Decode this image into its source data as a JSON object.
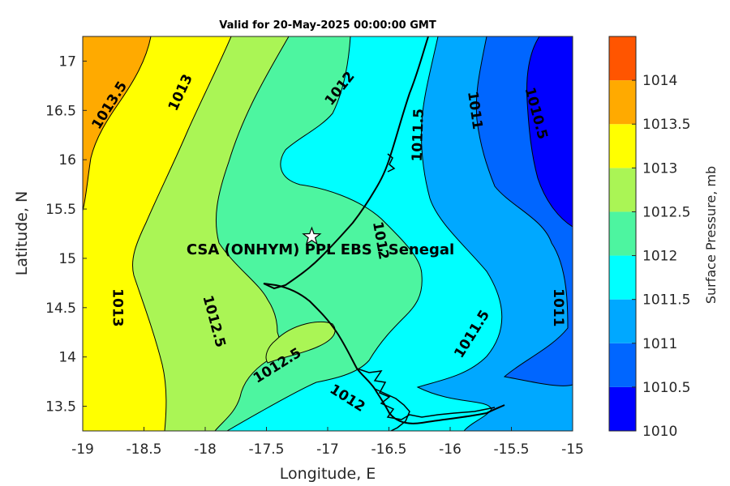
{
  "title": "Valid for 20-May-2025 00:00:00 GMT",
  "map": {
    "xlabel": "Longitude, E",
    "ylabel": "Latitude, N",
    "xlim": [
      -19,
      -15
    ],
    "ylim": [
      13.25,
      17.25
    ],
    "x_ticks": [
      "-19",
      "-18.5",
      "-18",
      "-17.5",
      "-17",
      "-16.5",
      "-16",
      "-15.5",
      "-15"
    ],
    "y_ticks": [
      "13.5",
      "14",
      "14.5",
      "15",
      "15.5",
      "16",
      "16.5",
      "17"
    ],
    "station": {
      "name": "CSA (ONHYM) PPL EBS - Senegal",
      "lon": -17.13,
      "lat": 15.22
    },
    "contour_labels": [
      {
        "text": "1013.5",
        "lon": -18.78,
        "lat": 16.55,
        "angle": -58
      },
      {
        "text": "1013",
        "lon": -18.2,
        "lat": 16.68,
        "angle": -65
      },
      {
        "text": "1012",
        "lon": -16.9,
        "lat": 16.72,
        "angle": -52
      },
      {
        "text": "1011.5",
        "lon": -16.26,
        "lat": 16.25,
        "angle": -88
      },
      {
        "text": "1011",
        "lon": -15.8,
        "lat": 16.5,
        "angle": 82
      },
      {
        "text": "1010.5",
        "lon": -15.3,
        "lat": 16.47,
        "angle": 75
      },
      {
        "text": "1012",
        "lon": -16.57,
        "lat": 15.18,
        "angle": 80
      },
      {
        "text": "1013",
        "lon": -18.72,
        "lat": 14.5,
        "angle": 90
      },
      {
        "text": "1012.5",
        "lon": -17.93,
        "lat": 14.36,
        "angle": 75
      },
      {
        "text": "1012.5",
        "lon": -17.41,
        "lat": 13.91,
        "angle": -32
      },
      {
        "text": "1012",
        "lon": -16.84,
        "lat": 13.58,
        "angle": 32
      },
      {
        "text": "1011.5",
        "lon": -15.82,
        "lat": 14.23,
        "angle": -58
      },
      {
        "text": "1011",
        "lon": -15.12,
        "lat": 14.5,
        "angle": 90
      }
    ]
  },
  "colorbar": {
    "label": "Surface Pressure, mb",
    "levels": [
      "1010",
      "1010.5",
      "1011",
      "1011.5",
      "1012",
      "1012.5",
      "1013",
      "1013.5",
      "1014"
    ],
    "colors": [
      "#0000ff",
      "#0066ff",
      "#00a8ff",
      "#00ffff",
      "#4df5a0",
      "#aaf555",
      "#ffff00",
      "#ffaa00",
      "#ff5500"
    ]
  }
}
